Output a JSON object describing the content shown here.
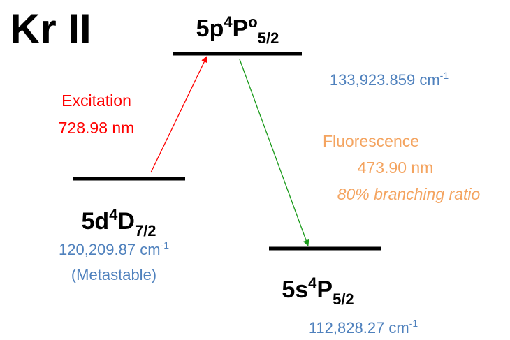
{
  "title": "Kr II",
  "levels": [
    {
      "config": "5p",
      "multiplicity": "4",
      "letter": "P",
      "parity": "o",
      "j": "5/2",
      "energy": "133,923.859 cm",
      "energy_exp": "-1"
    },
    {
      "config": "5d",
      "multiplicity": "4",
      "letter": "D",
      "j": "7/2",
      "energy": "120,209.87 cm",
      "energy_exp": "-1",
      "note": "(Metastable)"
    },
    {
      "config": "5s",
      "multiplicity": "4",
      "letter": "P",
      "j": "5/2",
      "energy": "112,828.27 cm",
      "energy_exp": "-1"
    }
  ],
  "transitions": [
    {
      "label": "Excitation",
      "wavelength": "728.98 nm"
    },
    {
      "label": "Fluorescence",
      "wavelength": "473.90 nm",
      "note": "80% branching ratio"
    }
  ]
}
